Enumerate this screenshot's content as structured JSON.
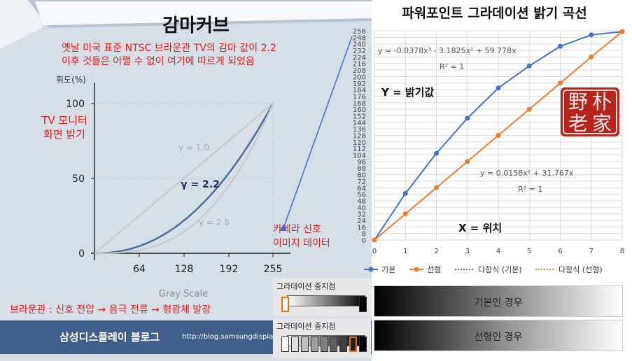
{
  "left_panel": {
    "title": "감마커브",
    "note_line1": "옛날 미국 표준 NTSC 브라운관 TV의 감마 값이 2.2",
    "note_line2": "이후 것들은 어쩔 수 없이 여기에 따르게 되었음",
    "tv_note_line1": "TV 모니터",
    "tv_note_line2": "화면 밝기",
    "camera_note_line1": "카메라 신호",
    "camera_note_line2": "이미지 데이터",
    "crt_note": "브라운관 : 신호 전압 → 음극 전류 → 형광체 발광",
    "blog_title": "삼성디스플레이 블로그",
    "blog_url": "http://blog.samsungdisplay."
  },
  "right_panel": {
    "title": "파워포인트 그라데이션 밝기 곡선",
    "seal_chars": [
      "野",
      "朴",
      "老",
      "家"
    ]
  },
  "gradient_widgets": [
    {
      "label": "그라데이션 중지점",
      "stops": 2,
      "selected": 0
    },
    {
      "label": "그라데이션 중지점",
      "stops": 9,
      "selected": 7
    }
  ],
  "demo_bars": [
    {
      "label": "기본인 경우"
    },
    {
      "label": "선형인 경우"
    }
  ],
  "chart_data": [
    {
      "type": "line",
      "title": "",
      "ylabel": "휘도(%)",
      "xlabel": "Gray Scale",
      "x_ticks": [
        64,
        128,
        192,
        255
      ],
      "y_ticks": [
        0,
        50,
        100
      ],
      "xlim": [
        0,
        255
      ],
      "ylim": [
        0,
        100
      ],
      "series": [
        {
          "name": "γ = 1.0",
          "gamma": 1.0,
          "color": "#c8c8c8"
        },
        {
          "name": "γ = 2.2",
          "gamma": 2.2,
          "color": "#4a6e96"
        },
        {
          "name": "γ = 2.8",
          "gamma": 2.8,
          "color": "#c8c8c8"
        }
      ]
    },
    {
      "type": "line",
      "title": "",
      "x": [
        0,
        1,
        2,
        3,
        4,
        5,
        6,
        7,
        8
      ],
      "xlim": [
        0,
        8
      ],
      "ylim": [
        0,
        256
      ],
      "y_ticks": [
        0,
        8,
        16,
        24,
        32,
        40,
        48,
        56,
        64,
        72,
        80,
        88,
        96,
        104,
        112,
        120,
        128,
        136,
        144,
        152,
        160,
        168,
        176,
        184,
        192,
        200,
        208,
        216,
        224,
        232,
        240,
        248,
        256
      ],
      "y_label_inside": "Y = 밝기값",
      "x_label_inside": "X = 위치",
      "grid": true,
      "legend_position": "bottom",
      "series": [
        {
          "name": "기본",
          "values": [
            0,
            57,
            106,
            149,
            186,
            213,
            237,
            251,
            255
          ],
          "color": "#4472c4",
          "marker": "circle"
        },
        {
          "name": "선형",
          "values": [
            0,
            32,
            64,
            96,
            128,
            160,
            192,
            224,
            255
          ],
          "color": "#ed7d31",
          "marker": "circle"
        }
      ],
      "trendline_legend": [
        {
          "name": "다항식 (기본)",
          "color": "#4472c4"
        },
        {
          "name": "다항식 (선형)",
          "color": "#ed7d31"
        }
      ],
      "equations": [
        {
          "text": "y = -0.0378x³ - 3.1825x² + 59.778x",
          "r2": "R² = 1"
        },
        {
          "text": "y = 0.0158x² + 31.767x",
          "r2": "R² = 1"
        }
      ]
    }
  ]
}
